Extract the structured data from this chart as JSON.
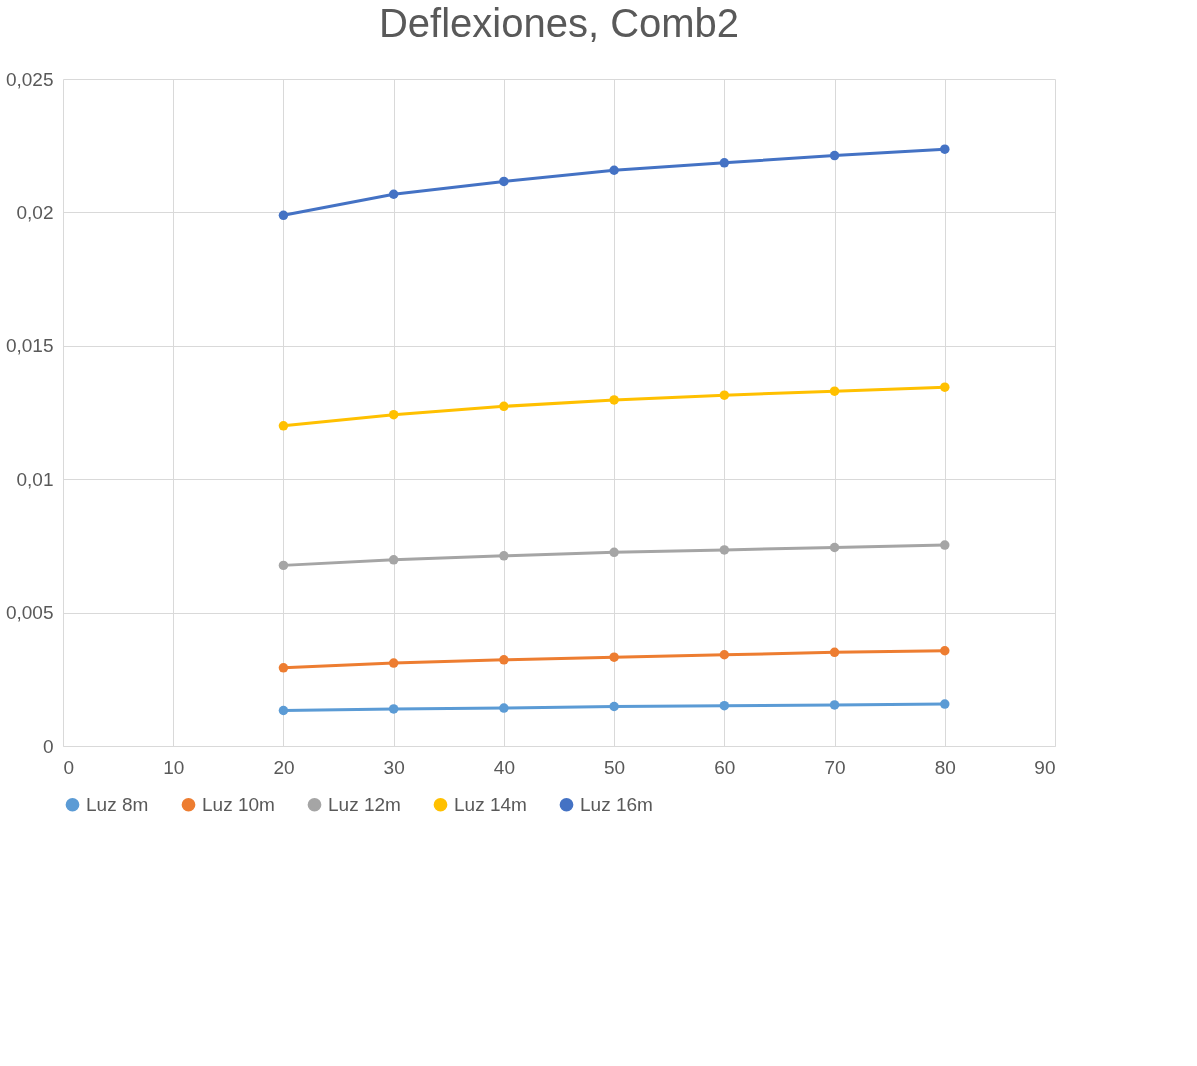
{
  "chart_data": {
    "type": "line",
    "title": "Deflexiones, Comb2",
    "x": [
      20,
      30,
      40,
      50,
      60,
      70,
      80
    ],
    "series": [
      {
        "name": "Luz 8m",
        "color": "#5b9bd5",
        "values": [
          0.00133,
          0.00139,
          0.00142,
          0.00148,
          0.00151,
          0.00154,
          0.00157
        ]
      },
      {
        "name": "Luz 10m",
        "color": "#ed7d31",
        "values": [
          0.00293,
          0.00311,
          0.00323,
          0.00333,
          0.00342,
          0.00351,
          0.00357
        ]
      },
      {
        "name": "Luz 12m",
        "color": "#a5a5a5",
        "values": [
          0.00677,
          0.00698,
          0.00713,
          0.00726,
          0.00735,
          0.00744,
          0.00753
        ]
      },
      {
        "name": "Luz 14m",
        "color": "#ffc000",
        "values": [
          0.012,
          0.01242,
          0.01273,
          0.01297,
          0.01315,
          0.0133,
          0.01345
        ]
      },
      {
        "name": "Luz 16m",
        "color": "#4472c4",
        "values": [
          0.01989,
          0.02068,
          0.02116,
          0.02158,
          0.02186,
          0.02213,
          0.02237
        ]
      }
    ],
    "xlim": [
      0,
      90
    ],
    "xticks": [
      0,
      10,
      20,
      30,
      40,
      50,
      60,
      70,
      80,
      90
    ],
    "ylim": [
      0,
      0.025
    ],
    "yticks": [
      0,
      {
        "value": 0.005,
        "label": "0,005"
      },
      {
        "value": 0.01,
        "label": "0,01"
      },
      {
        "value": 0.015,
        "label": "0,015"
      },
      {
        "value": 0.02,
        "label": "0,02"
      },
      {
        "value": 0.025,
        "label": "0,025"
      }
    ],
    "grid": true,
    "legend": "bottom",
    "marker": "circle",
    "line_style": "solid"
  }
}
